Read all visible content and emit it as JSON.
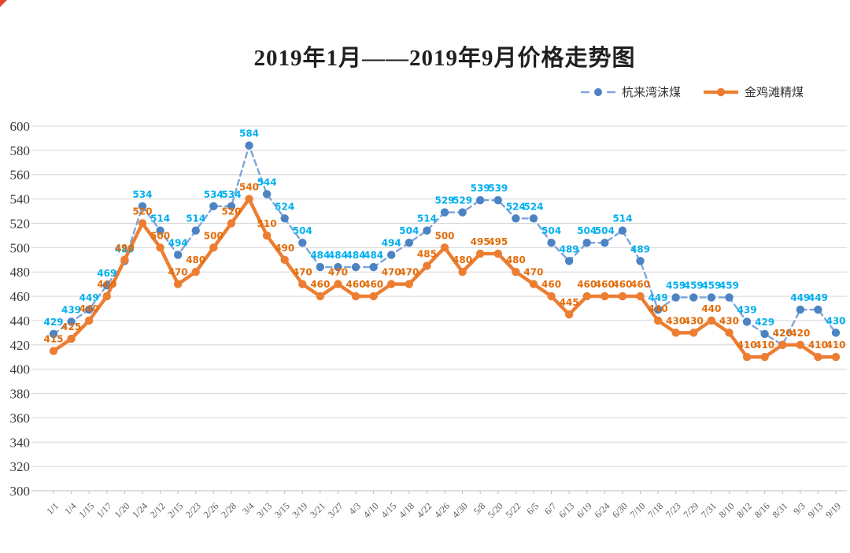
{
  "chart_data": {
    "type": "line",
    "title": "2019年1月——2019年9月价格走势图",
    "categories": [
      "1/1",
      "1/4",
      "1/15",
      "1/17",
      "1/20",
      "1/24",
      "2/12",
      "2/15",
      "2/23",
      "2/26",
      "2/28",
      "3/4",
      "3/13",
      "3/15",
      "3/19",
      "3/21",
      "3/27",
      "4/3",
      "4/10",
      "4/15",
      "4/18",
      "4/22",
      "4/26",
      "4/30",
      "5/8",
      "5/20",
      "5/22",
      "6/5",
      "6/7",
      "6/13",
      "6/19",
      "6/24",
      "6/30",
      "7/10",
      "7/18",
      "7/23",
      "7/29",
      "7/31",
      "8/10",
      "8/12",
      "8/16",
      "8/31",
      "9/3",
      "9/13",
      "9/19"
    ],
    "series": [
      {
        "name": "杭来湾沫煤",
        "style": "dashed",
        "line_color": "#7ca5db",
        "marker_color": "#4c83c3",
        "label_color": "#00b0f0",
        "values": [
          429,
          439,
          449,
          469,
          489,
          534,
          514,
          494,
          514,
          534,
          534,
          584,
          544,
          524,
          504,
          484,
          484,
          484,
          484,
          494,
          504,
          514,
          529,
          529,
          539,
          539,
          524,
          524,
          504,
          489,
          504,
          504,
          514,
          489,
          449,
          459,
          459,
          459,
          459,
          439,
          429,
          420,
          449,
          449,
          430
        ]
      },
      {
        "name": "金鸡滩精煤",
        "style": "solid",
        "line_color": "#ed7d31",
        "marker_color": "#ed7d31",
        "label_color": "#e36c0a",
        "values": [
          415,
          425,
          440,
          460,
          490,
          520,
          500,
          470,
          480,
          500,
          520,
          540,
          510,
          490,
          470,
          460,
          470,
          460,
          460,
          470,
          470,
          485,
          500,
          480,
          495,
          495,
          480,
          470,
          460,
          445,
          460,
          460,
          460,
          460,
          440,
          430,
          430,
          440,
          430,
          410,
          410,
          420,
          420,
          410,
          410
        ]
      }
    ],
    "ylim": [
      300,
      600
    ],
    "ytick_step": 20,
    "grid": true,
    "gridline_color": "#d6d6d6",
    "axis_color": "#bfbfbf",
    "legend_position": "top-right"
  }
}
